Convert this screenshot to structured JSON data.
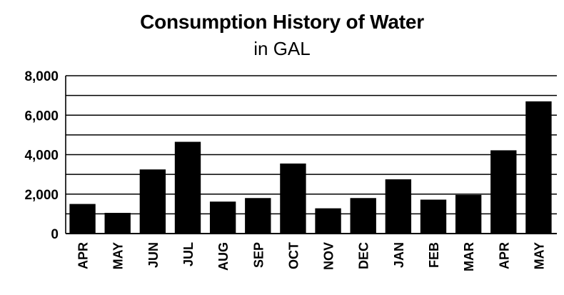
{
  "chart_data": {
    "type": "bar",
    "title": "Consumption History of Water",
    "subtitle": "in GAL",
    "xlabel": "",
    "ylabel": "",
    "categories": [
      "APR",
      "MAY",
      "JUN",
      "JUL",
      "AUG",
      "SEP",
      "OCT",
      "NOV",
      "DEC",
      "JAN",
      "FEB",
      "MAR",
      "APR",
      "MAY"
    ],
    "values": [
      1500,
      1050,
      3250,
      4650,
      1620,
      1800,
      3550,
      1280,
      1800,
      2750,
      1720,
      1960,
      4220,
      6700
    ],
    "ylim": [
      0,
      8000
    ],
    "yticks": [
      0,
      2000,
      4000,
      6000,
      8000
    ],
    "ytick_labels": [
      "0",
      "2,000",
      "4,000",
      "6,000",
      "8,000"
    ],
    "minor_gridlines": [
      1000,
      3000,
      5000,
      7000
    ],
    "grid": true,
    "bar_color": "#000000",
    "grid_color": "#000000",
    "legend": "none"
  }
}
